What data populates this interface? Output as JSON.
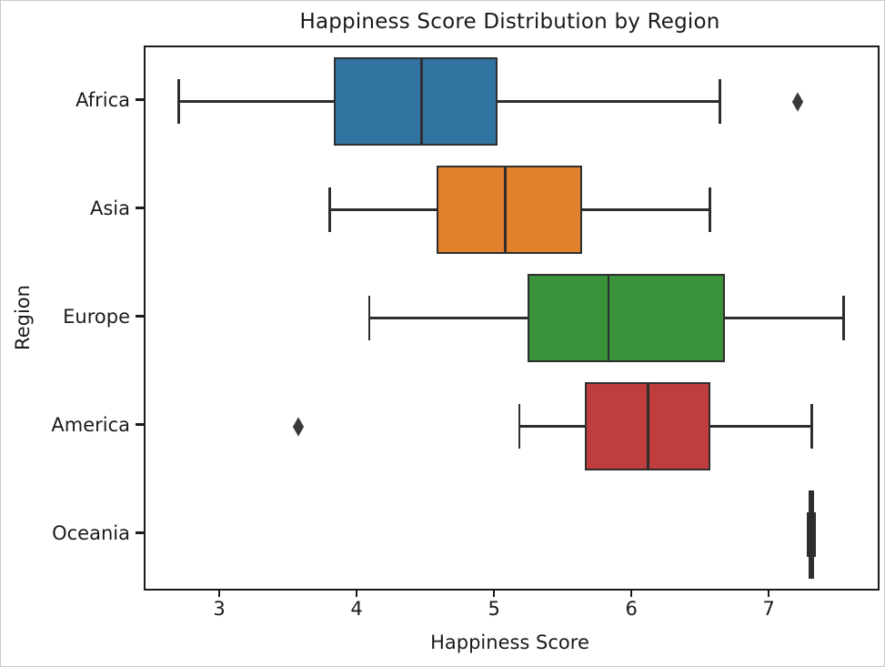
{
  "chart_data": {
    "type": "boxplot",
    "orientation": "horizontal",
    "title": "Happiness Score Distribution by Region",
    "xlabel": "Happiness Score",
    "ylabel": "Region",
    "xlim": [
      2.45,
      7.78
    ],
    "xticks": [
      "3",
      "4",
      "5",
      "6",
      "7"
    ],
    "xtick_values": [
      3,
      4,
      5,
      6,
      7
    ],
    "grid": false,
    "legend": "none",
    "categories": [
      "Africa",
      "Asia",
      "Europe",
      "America",
      "Oceania"
    ],
    "series": [
      {
        "region": "Africa",
        "whisker_low": 2.69,
        "q1": 3.82,
        "median": 4.46,
        "q3": 5.01,
        "whisker_high": 6.63,
        "outliers": [
          7.2
        ],
        "color": "#3274a1"
      },
      {
        "region": "Asia",
        "whisker_low": 3.79,
        "q1": 4.57,
        "median": 5.07,
        "q3": 5.63,
        "whisker_high": 6.56,
        "outliers": [],
        "color": "#e1812c"
      },
      {
        "region": "Europe",
        "whisker_low": 4.08,
        "q1": 5.23,
        "median": 5.82,
        "q3": 6.67,
        "whisker_high": 7.53,
        "outliers": [],
        "color": "#3a923a"
      },
      {
        "region": "America",
        "whisker_low": 5.17,
        "q1": 5.65,
        "median": 6.11,
        "q3": 6.56,
        "whisker_high": 7.3,
        "outliers": [
          3.56
        ],
        "color": "#c03d3e"
      },
      {
        "region": "Oceania",
        "whisker_low": 7.275,
        "q1": 7.278,
        "median": 7.298,
        "q3": 7.315,
        "whisker_high": 7.318,
        "outliers": [],
        "color": "#8d6ab0"
      }
    ],
    "style_colors": {
      "box_edge": "#2e2e2e",
      "outlier_marker": "#3a3a3a",
      "axes_spine": "#1b1b1b",
      "background": "#ffffff"
    }
  }
}
